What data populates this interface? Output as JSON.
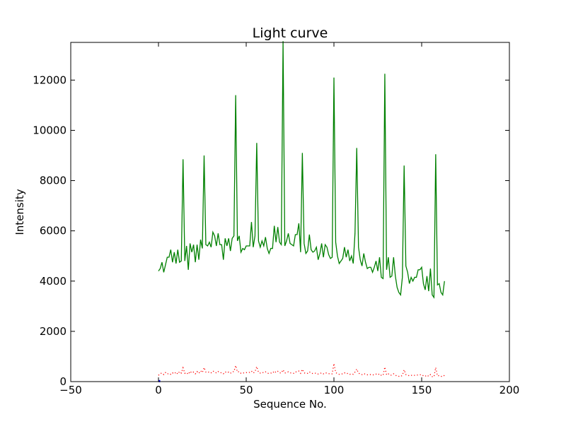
{
  "chart_data": {
    "type": "line",
    "title": "Light curve",
    "xlabel": "Sequence No.",
    "ylabel": "Intensity",
    "xlim": [
      -50,
      200
    ],
    "ylim": [
      0,
      13500
    ],
    "xticks": [
      -50,
      0,
      50,
      100,
      150,
      200
    ],
    "xtick_labels": [
      "−50",
      "0",
      "50",
      "100",
      "150",
      "200"
    ],
    "yticks": [
      0,
      2000,
      4000,
      6000,
      8000,
      10000,
      12000
    ],
    "ytick_labels": [
      "0",
      "2000",
      "4000",
      "6000",
      "8000",
      "10000",
      "12000"
    ],
    "grid": false,
    "legend": "none",
    "series": [
      {
        "color": "#008000",
        "style": "solid",
        "x_start": 0,
        "x_step": 1,
        "values": [
          4400,
          4500,
          4750,
          4350,
          4650,
          4950,
          4950,
          5250,
          4750,
          5150,
          4700,
          5250,
          4750,
          4800,
          8850,
          4800,
          5400,
          4450,
          5500,
          5150,
          5450,
          4750,
          5450,
          4850,
          5650,
          5300,
          9000,
          5450,
          5400,
          5550,
          5350,
          5950,
          5800,
          5400,
          5900,
          5450,
          5450,
          4850,
          5700,
          5400,
          5700,
          5200,
          5700,
          5800,
          11400,
          5600,
          5800,
          5150,
          5300,
          5250,
          5400,
          5400,
          5400,
          6350,
          5350,
          5800,
          9500,
          5600,
          5350,
          5600,
          5400,
          5750,
          5300,
          5100,
          5300,
          5300,
          6200,
          5550,
          6150,
          5550,
          5450,
          13550,
          5400,
          5600,
          5900,
          5500,
          5450,
          5400,
          5850,
          5850,
          6300,
          5150,
          9100,
          5500,
          5100,
          5200,
          5850,
          5250,
          5150,
          5200,
          5350,
          4850,
          5100,
          5500,
          4950,
          5450,
          5350,
          5050,
          4900,
          4950,
          12100,
          5550,
          5000,
          4700,
          4800,
          4900,
          5350,
          4950,
          5250,
          4800,
          5000,
          4700,
          5900,
          9300,
          5350,
          4850,
          4600,
          5100,
          4750,
          4500,
          4550,
          4550,
          4350,
          4550,
          4800,
          4400,
          4950,
          4150,
          4100,
          12250,
          4450,
          4950,
          4150,
          4200,
          4950,
          4200,
          3750,
          3550,
          3450,
          4150,
          8600,
          4600,
          4350,
          3900,
          4150,
          4000,
          4150,
          4150,
          4450,
          4450,
          4550,
          3900,
          3650,
          4200,
          3600,
          4500,
          3450,
          3350,
          9050,
          3850,
          3900,
          3550,
          3450,
          4000
        ],
        "values_note": ""
      },
      {
        "color": "#ff0000",
        "style": "dotted",
        "x_start": 0,
        "x_step": 1,
        "values": [
          250,
          320,
          340,
          280,
          360,
          300,
          330,
          290,
          350,
          310,
          380,
          300,
          400,
          340,
          550,
          330,
          360,
          290,
          410,
          340,
          380,
          310,
          400,
          330,
          430,
          360,
          560,
          380,
          360,
          390,
          350,
          420,
          390,
          340,
          400,
          360,
          350,
          310,
          390,
          350,
          380,
          330,
          390,
          400,
          640,
          380,
          400,
          330,
          350,
          340,
          360,
          350,
          370,
          420,
          340,
          390,
          600,
          370,
          340,
          370,
          350,
          390,
          340,
          320,
          340,
          330,
          420,
          360,
          410,
          350,
          340,
          470,
          340,
          360,
          390,
          350,
          340,
          330,
          390,
          380,
          420,
          330,
          490,
          350,
          320,
          330,
          390,
          340,
          320,
          330,
          340,
          300,
          320,
          350,
          310,
          350,
          340,
          320,
          300,
          310,
          720,
          360,
          320,
          290,
          300,
          310,
          350,
          310,
          330,
          290,
          310,
          290,
          380,
          500,
          340,
          300,
          280,
          320,
          290,
          270,
          280,
          280,
          260,
          280,
          300,
          270,
          310,
          250,
          250,
          580,
          270,
          310,
          250,
          260,
          310,
          260,
          220,
          210,
          200,
          250,
          470,
          280,
          260,
          230,
          250,
          240,
          250,
          250,
          270,
          270,
          280,
          230,
          210,
          260,
          210,
          280,
          200,
          190,
          560,
          230,
          240,
          210,
          200,
          250
        ]
      },
      {
        "color": "#0000ff",
        "style": "solid",
        "x_start": 0,
        "x_step": 1,
        "values": [
          20,
          20
        ]
      }
    ]
  }
}
